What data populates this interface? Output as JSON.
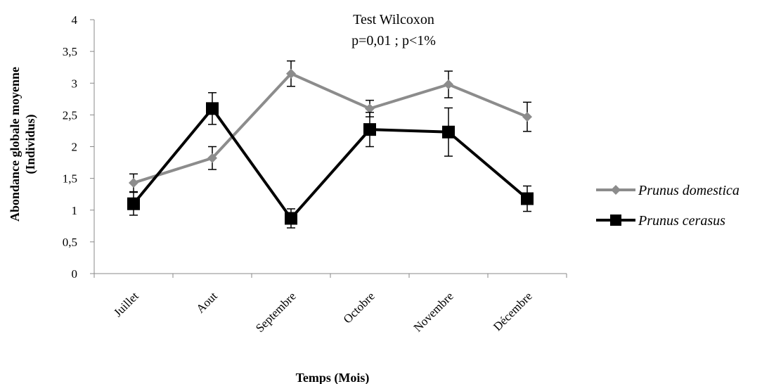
{
  "chart_data": {
    "type": "line",
    "title": "",
    "annotation": [
      "Test Wilcoxon",
      "p=0,01 ; p<1%"
    ],
    "xlabel": "Temps (Mois)",
    "ylabel": [
      "Abondance globale moyenne",
      "(Individus)"
    ],
    "categories": [
      "Juillet",
      "Aout",
      "Septembre",
      "Octobre",
      "Novembre",
      "Décembre"
    ],
    "ylim": [
      0,
      4
    ],
    "yticks": [
      0,
      0.5,
      1,
      1.5,
      2,
      2.5,
      3,
      3.5,
      4
    ],
    "ytick_labels": [
      "0",
      "0,5",
      "1",
      "1,5",
      "2",
      "2,5",
      "3",
      "3,5",
      "4"
    ],
    "grid": false,
    "legend_position": "right",
    "series": [
      {
        "name": "Prunus domestica",
        "color": "#8c8c8c",
        "marker": "diamond",
        "values": [
          1.43,
          1.82,
          3.15,
          2.6,
          2.98,
          2.47
        ],
        "errors": [
          0.14,
          0.18,
          0.2,
          0.13,
          0.21,
          0.23
        ]
      },
      {
        "name": "Prunus cerasus",
        "color": "#000000",
        "marker": "square",
        "values": [
          1.1,
          2.6,
          0.87,
          2.27,
          2.23,
          1.18
        ],
        "errors": [
          0.18,
          0.25,
          0.15,
          0.27,
          0.38,
          0.2
        ]
      }
    ]
  }
}
